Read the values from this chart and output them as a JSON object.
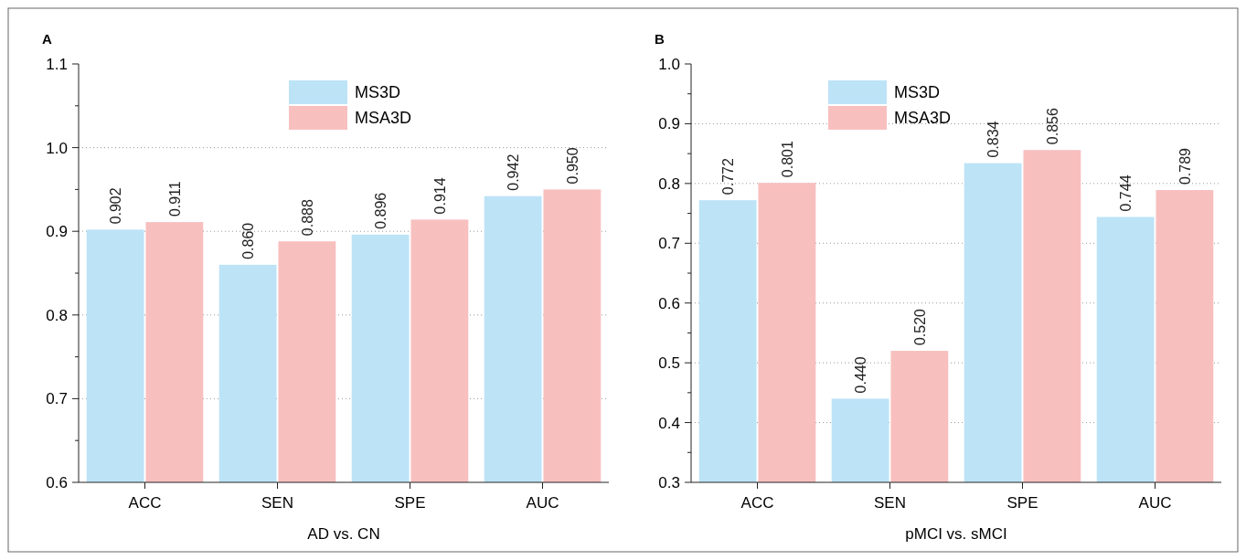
{
  "chart_data": [
    {
      "type": "bar",
      "title": "A",
      "xlabel": "AD vs. CN",
      "categories": [
        "ACC",
        "SEN",
        "SPE",
        "AUC"
      ],
      "series": [
        {
          "name": "MS3D",
          "color": "#bde3f7",
          "values": [
            0.902,
            0.86,
            0.896,
            0.942
          ],
          "value_labels": [
            "0.902",
            "0.860",
            "0.896",
            "0.942"
          ]
        },
        {
          "name": "MSA3D",
          "color": "#f8bfbf",
          "values": [
            0.911,
            0.888,
            0.914,
            0.95
          ],
          "value_labels": [
            "0.911",
            "0.888",
            "0.914",
            "0.950"
          ]
        }
      ],
      "ylim": [
        0.6,
        1.1
      ],
      "yticks": [
        0.6,
        0.7,
        0.8,
        0.9,
        {
          "value": 1,
          "label": "1.0"
        },
        1.1
      ],
      "grid": "y",
      "legend": "top"
    },
    {
      "type": "bar",
      "title": "B",
      "xlabel": "pMCI vs. sMCI",
      "categories": [
        "ACC",
        "SEN",
        "SPE",
        "AUC"
      ],
      "series": [
        {
          "name": "MS3D",
          "color": "#bde3f7",
          "values": [
            0.772,
            0.44,
            0.834,
            0.744
          ],
          "value_labels": [
            "0.772",
            "0.440",
            "0.834",
            "0.744"
          ]
        },
        {
          "name": "MSA3D",
          "color": "#f8bfbf",
          "values": [
            0.801,
            0.52,
            0.856,
            0.789
          ],
          "value_labels": [
            "0.801",
            "0.520",
            "0.856",
            "0.789"
          ]
        }
      ],
      "ylim": [
        0.3,
        1.0
      ],
      "yticks": [
        0.3,
        0.4,
        0.5,
        0.6,
        0.7,
        0.8,
        0.9,
        {
          "value": 1,
          "label": "1.0"
        }
      ],
      "grid": "y",
      "legend": "top left"
    }
  ]
}
